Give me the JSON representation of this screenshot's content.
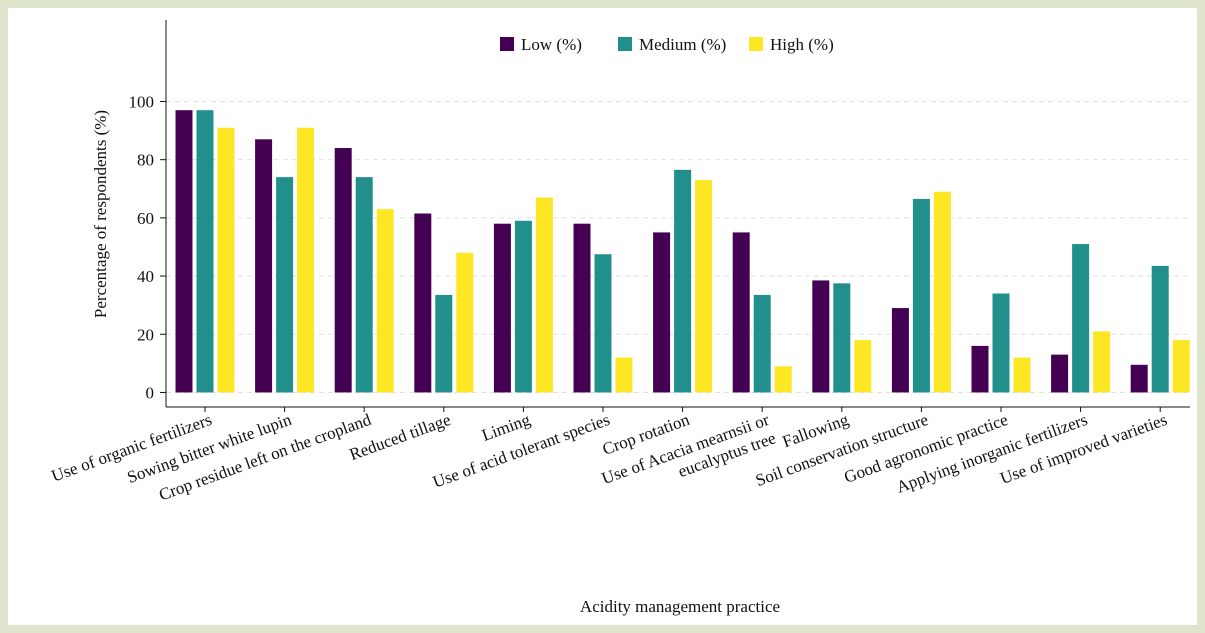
{
  "chart_data": {
    "type": "bar",
    "x_label": "Acidity management practice",
    "y_label": "Percentage of respondents (%)",
    "categories": [
      "Use of organic fertilizers",
      "Sowing bitter white lupin",
      "Crop residue left on the cropland",
      "Reduced tillage",
      "Liming",
      "Use of acid tolerant species",
      "Crop rotation",
      "Use of Acacia mearnsii or\neucalyptus tree",
      "Fallowing",
      "Soil conservation structure",
      "Good agronomic practice",
      "Applying inorganic fertilizers",
      "Use of improved varieties"
    ],
    "series": [
      {
        "name": "Low (%)",
        "color": "#440154",
        "values": [
          97,
          87,
          84,
          61.5,
          58,
          58,
          55,
          55,
          38.5,
          29,
          16,
          13,
          9.5
        ]
      },
      {
        "name": "Medium (%)",
        "color": "#21908d",
        "values": [
          97,
          74,
          74,
          33.5,
          59,
          47.5,
          76.5,
          33.5,
          37.5,
          66.5,
          34,
          51,
          43.5
        ]
      },
      {
        "name": "High (%)",
        "color": "#fde725",
        "values": [
          91,
          91,
          63,
          48,
          67,
          12,
          73,
          9,
          18,
          69,
          12,
          21,
          18
        ]
      }
    ],
    "ylim": [
      -5,
      128
    ],
    "yticks": [
      0,
      20,
      40,
      60,
      80,
      100
    ],
    "grid": true,
    "legend": "top"
  }
}
